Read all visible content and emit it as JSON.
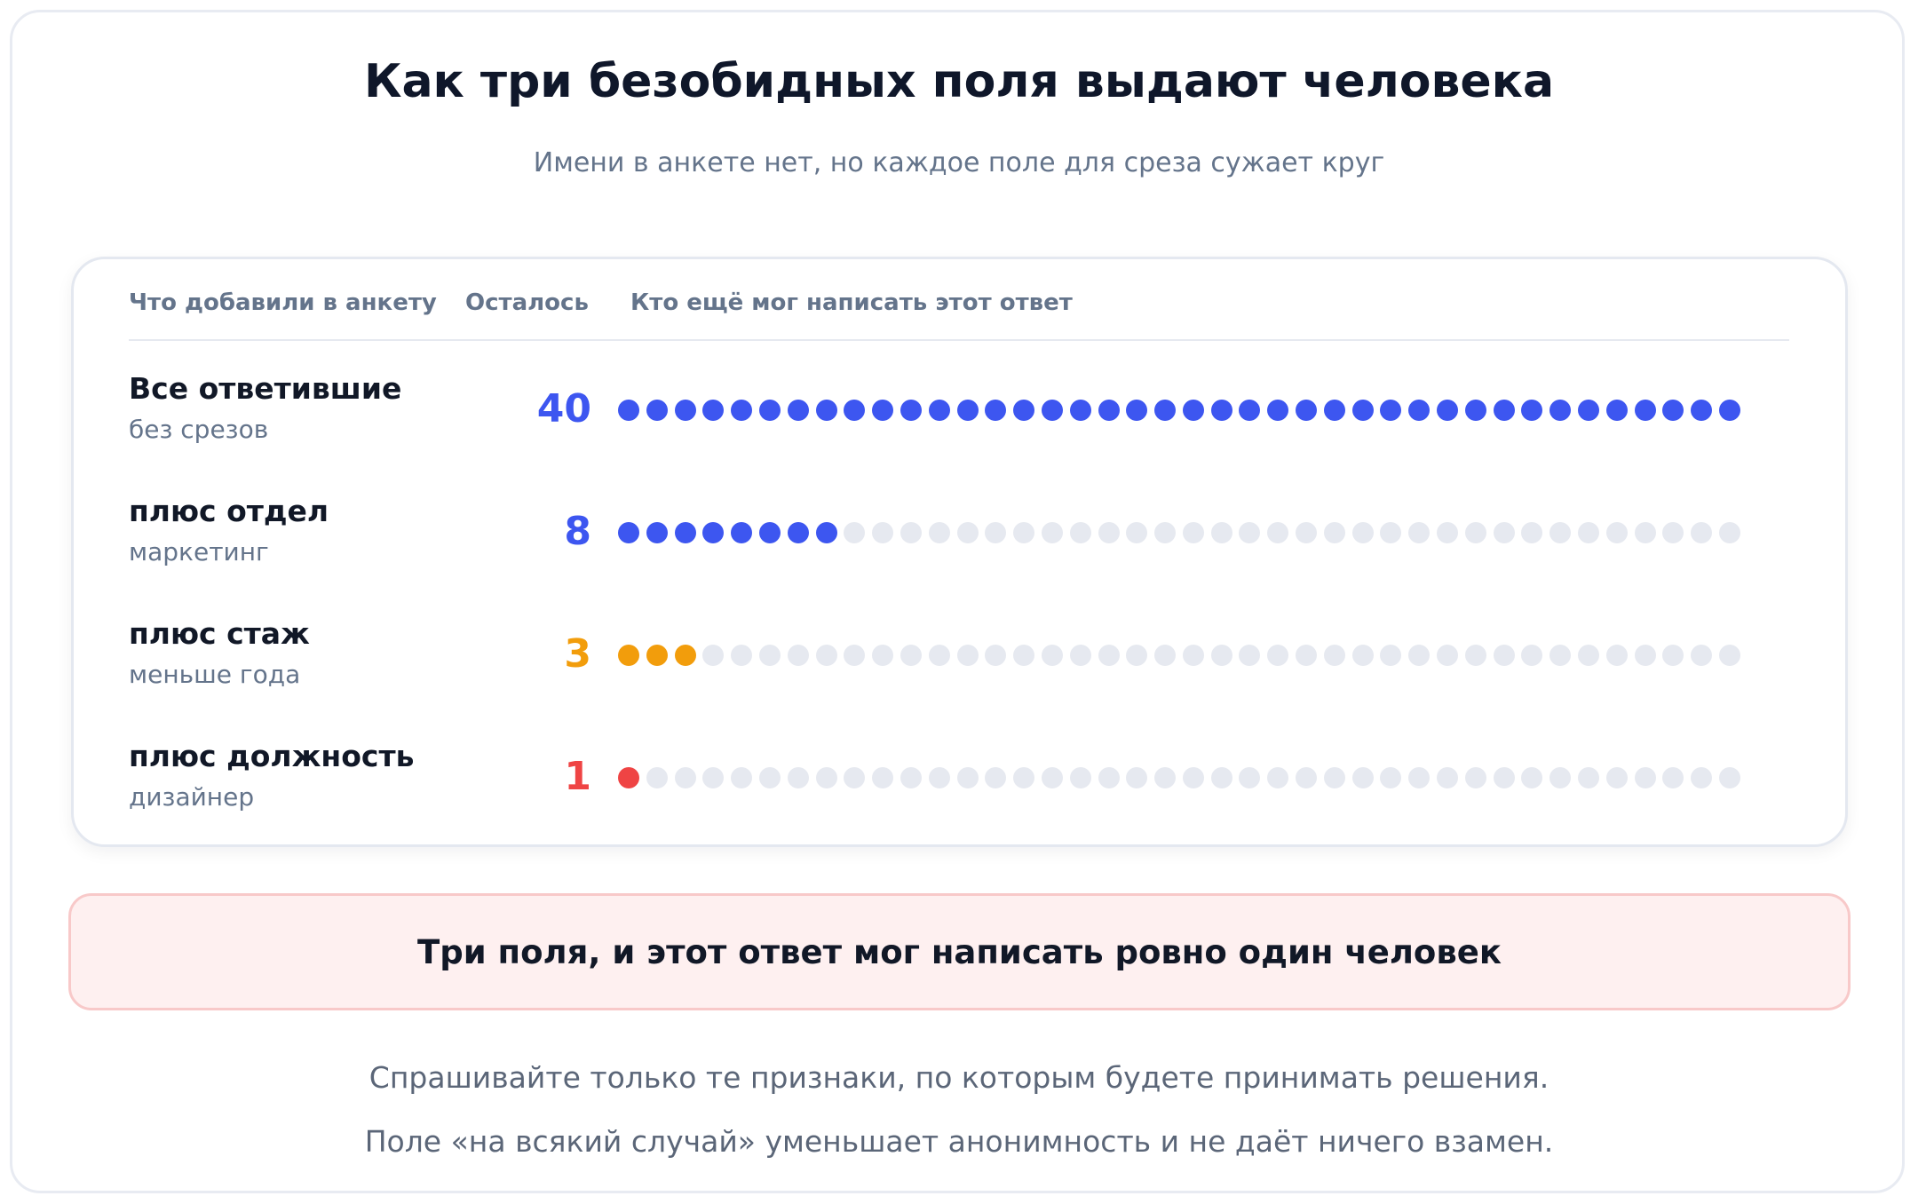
{
  "header": {
    "title": "Как три безобидных поля выдают человека",
    "subtitle": "Имени в анкете нет, но каждое поле для среза сужает круг"
  },
  "table": {
    "columns": [
      "Что добавили в анкету",
      "Осталось",
      "Кто ещё мог написать этот ответ"
    ],
    "empty_color": "#e6e9f0",
    "rows": [
      {
        "label": "Все ответившие",
        "sublabel": "без срезов",
        "count": 40,
        "color": "#3d56f0"
      },
      {
        "label": "плюс отдел",
        "sublabel": "маркетинг",
        "count": 8,
        "color": "#3d56f0"
      },
      {
        "label": "плюс стаж",
        "sublabel": "меньше года",
        "count": 3,
        "color": "#f29d0c"
      },
      {
        "label": "плюс должность",
        "sublabel": "дизайнер",
        "count": 1,
        "color": "#ef4444"
      }
    ]
  },
  "alert": {
    "text": "Три поля, и этот ответ мог написать ровно один человек"
  },
  "footer": [
    "Спрашивайте только те признаки, по которым будете принимать решения.",
    "Поле «на всякий случай» уменьшает анонимность и не даёт ничего взамен."
  ]
}
